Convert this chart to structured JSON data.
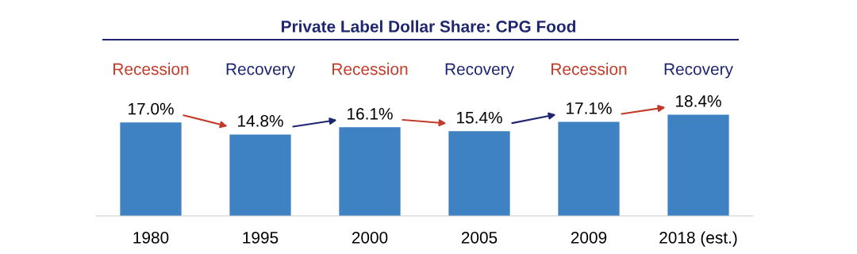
{
  "chart_data": {
    "type": "bar",
    "title": "Private Label Dollar Share: CPG Food",
    "categories": [
      "1980",
      "1995",
      "2000",
      "2005",
      "2009",
      "2018 (est.)"
    ],
    "values": [
      17.0,
      14.8,
      16.1,
      15.4,
      17.1,
      18.4
    ],
    "value_labels": [
      "17.0%",
      "14.8%",
      "16.1%",
      "15.4%",
      "17.1%",
      "18.4%"
    ],
    "color": "#3f82c4",
    "annotations": [
      "Recession",
      "Recovery",
      "Recession",
      "Recovery",
      "Recession",
      "Recovery"
    ],
    "grid": false,
    "legend": false
  }
}
